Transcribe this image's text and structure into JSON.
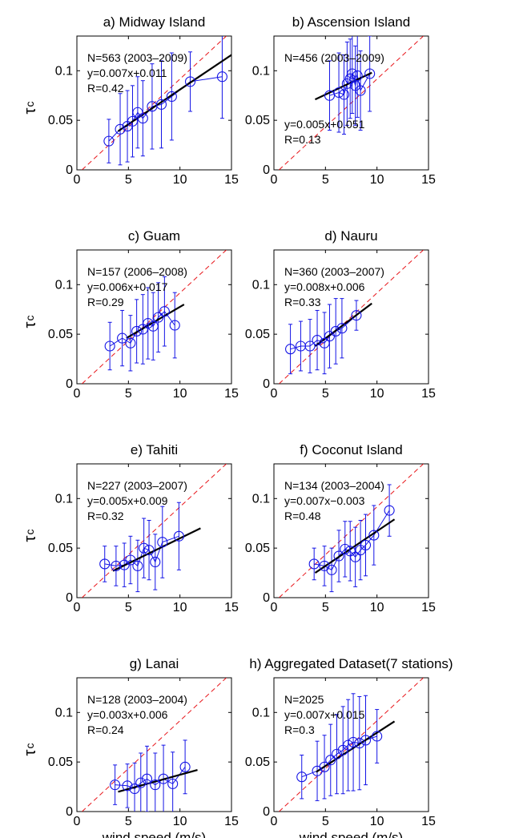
{
  "figure": {
    "ylabel_main": "τ",
    "ylabel_sub": "c",
    "xlabel": "wind speed (m/s)"
  },
  "chart_data": [
    {
      "type": "scatter",
      "title": "a) Midway Island",
      "stats": [
        "N=563 (2003–2009)",
        "y=0.007x+0.011",
        "R=0.42"
      ],
      "xlim": [
        0,
        15
      ],
      "ylim": [
        0,
        0.135
      ],
      "xticks": [
        0,
        5,
        10,
        15
      ],
      "yticks": [
        0,
        0.05,
        0.1
      ],
      "xtick_labels": [
        "0",
        "5",
        "10",
        "15"
      ],
      "ytick_labels": [
        "0",
        "0.05",
        "0.1"
      ],
      "x": [
        3.1,
        4.2,
        4.9,
        5.4,
        5.9,
        6.4,
        7.3,
        8.2,
        9.2,
        11.0,
        14.1
      ],
      "y": [
        0.029,
        0.041,
        0.044,
        0.049,
        0.058,
        0.052,
        0.064,
        0.066,
        0.074,
        0.089,
        0.094
      ],
      "err": [
        0.022,
        0.036,
        0.036,
        0.036,
        0.036,
        0.038,
        0.043,
        0.044,
        0.044,
        0.03,
        0.042
      ],
      "fit_line": {
        "x": [
          4,
          15
        ],
        "y": [
          0.039,
          0.116
        ]
      },
      "reference_line": {
        "x": [
          0.5,
          14.5
        ],
        "y": [
          0,
          0.135
        ]
      }
    },
    {
      "type": "scatter",
      "title": "b) Ascension Island",
      "stats": [
        "N=456 (2003–2009)",
        "y=0.005x+0.051",
        "R=0.13"
      ],
      "xlim": [
        0,
        15
      ],
      "ylim": [
        0,
        0.135
      ],
      "xticks": [
        0,
        5,
        10,
        15
      ],
      "yticks": [
        0,
        0.05,
        0.1
      ],
      "xtick_labels": [
        "0",
        "5",
        "10",
        "15"
      ],
      "ytick_labels": [
        "0",
        "0.05",
        "0.1"
      ],
      "x": [
        5.4,
        6.3,
        6.8,
        7.1,
        7.4,
        7.6,
        7.9,
        8.1,
        8.4,
        9.3
      ],
      "y": [
        0.075,
        0.078,
        0.076,
        0.087,
        0.092,
        0.097,
        0.085,
        0.095,
        0.08,
        0.097
      ],
      "err": [
        0.035,
        0.04,
        0.04,
        0.042,
        0.04,
        0.04,
        0.04,
        0.042,
        0.04,
        0.038
      ],
      "fit_line": {
        "x": [
          4,
          9.5
        ],
        "y": [
          0.071,
          0.098
        ]
      },
      "reference_line": {
        "x": [
          0.5,
          14.5
        ],
        "y": [
          0,
          0.135
        ]
      }
    },
    {
      "type": "scatter",
      "title": "c) Guam",
      "stats": [
        "N=157 (2006–2008)",
        "y=0.006x+0.017",
        "R=0.29"
      ],
      "xlim": [
        0,
        15
      ],
      "ylim": [
        0,
        0.135
      ],
      "xticks": [
        0,
        5,
        10,
        15
      ],
      "yticks": [
        0,
        0.05,
        0.1
      ],
      "xtick_labels": [
        "0",
        "5",
        "10",
        "15"
      ],
      "ytick_labels": [
        "0",
        "0.05",
        "0.1"
      ],
      "x": [
        3.2,
        4.4,
        5.2,
        5.8,
        6.4,
        6.9,
        7.4,
        7.9,
        8.5,
        9.5
      ],
      "y": [
        0.038,
        0.046,
        0.041,
        0.053,
        0.055,
        0.061,
        0.058,
        0.067,
        0.073,
        0.059
      ],
      "err": [
        0.024,
        0.028,
        0.028,
        0.032,
        0.035,
        0.036,
        0.034,
        0.035,
        0.035,
        0.033
      ],
      "fit_line": {
        "x": [
          4.8,
          10.4
        ],
        "y": [
          0.046,
          0.08
        ]
      },
      "reference_line": {
        "x": [
          0.5,
          14.5
        ],
        "y": [
          0,
          0.135
        ]
      }
    },
    {
      "type": "scatter",
      "title": "d) Nauru",
      "stats": [
        "N=360 (2003–2007)",
        "y=0.008x+0.006",
        "R=0.33"
      ],
      "xlim": [
        0,
        15
      ],
      "ylim": [
        0,
        0.135
      ],
      "xticks": [
        0,
        5,
        10,
        15
      ],
      "yticks": [
        0,
        0.05,
        0.1
      ],
      "xtick_labels": [
        "0",
        "5",
        "10",
        "15"
      ],
      "ytick_labels": [
        "0",
        "0.05",
        "0.1"
      ],
      "x": [
        1.6,
        2.6,
        3.5,
        4.2,
        4.9,
        5.4,
        6.0,
        6.6,
        8.0
      ],
      "y": [
        0.035,
        0.038,
        0.038,
        0.044,
        0.041,
        0.048,
        0.053,
        0.056,
        0.069
      ],
      "err": [
        0.025,
        0.025,
        0.027,
        0.03,
        0.031,
        0.032,
        0.033,
        0.03,
        0.015
      ],
      "fit_line": {
        "x": [
          4,
          9.5
        ],
        "y": [
          0.038,
          0.081
        ]
      },
      "reference_line": {
        "x": [
          0.5,
          14.5
        ],
        "y": [
          0,
          0.135
        ]
      }
    },
    {
      "type": "scatter",
      "title": "e) Tahiti",
      "stats": [
        "N=227 (2003–2007)",
        "y=0.005x+0.009",
        "R=0.32"
      ],
      "xlim": [
        0,
        15
      ],
      "ylim": [
        0,
        0.135
      ],
      "xticks": [
        0,
        5,
        10,
        15
      ],
      "yticks": [
        0,
        0.05,
        0.1
      ],
      "xtick_labels": [
        "0",
        "5",
        "10",
        "15"
      ],
      "ytick_labels": [
        "0",
        "0.05",
        "0.1"
      ],
      "x": [
        2.7,
        3.8,
        4.6,
        5.2,
        5.9,
        6.5,
        7.0,
        7.6,
        8.3,
        9.9
      ],
      "y": [
        0.034,
        0.032,
        0.033,
        0.038,
        0.032,
        0.05,
        0.048,
        0.036,
        0.056,
        0.062
      ],
      "err": [
        0.018,
        0.02,
        0.022,
        0.024,
        0.026,
        0.03,
        0.03,
        0.028,
        0.036,
        0.034
      ],
      "fit_line": {
        "x": [
          3.5,
          12
        ],
        "y": [
          0.027,
          0.07
        ]
      },
      "reference_line": {
        "x": [
          0.5,
          14.5
        ],
        "y": [
          0,
          0.135
        ]
      }
    },
    {
      "type": "scatter",
      "title": "f) Coconut Island",
      "stats": [
        "N=134 (2003–2004)",
        "y=0.007x−0.003",
        "R=0.48"
      ],
      "xlim": [
        0,
        15
      ],
      "ylim": [
        0,
        0.135
      ],
      "xticks": [
        0,
        5,
        10,
        15
      ],
      "yticks": [
        0,
        0.05,
        0.1
      ],
      "xtick_labels": [
        "0",
        "5",
        "10",
        "15"
      ],
      "ytick_labels": [
        "0",
        "0.05",
        "0.1"
      ],
      "x": [
        3.9,
        4.9,
        5.6,
        6.3,
        6.9,
        7.4,
        7.9,
        8.4,
        8.9,
        9.7,
        11.2
      ],
      "y": [
        0.034,
        0.032,
        0.028,
        0.042,
        0.049,
        0.047,
        0.041,
        0.048,
        0.053,
        0.063,
        0.088
      ],
      "err": [
        0.016,
        0.02,
        0.022,
        0.026,
        0.028,
        0.03,
        0.03,
        0.03,
        0.031,
        0.03,
        0.026
      ],
      "fit_line": {
        "x": [
          4,
          11.7
        ],
        "y": [
          0.025,
          0.079
        ]
      },
      "reference_line": {
        "x": [
          0.5,
          14.5
        ],
        "y": [
          0,
          0.135
        ]
      }
    },
    {
      "type": "scatter",
      "title": "g) Lanai",
      "stats": [
        "N=128 (2003–2004)",
        "y=0.003x+0.006",
        "R=0.24"
      ],
      "xlim": [
        0,
        15
      ],
      "ylim": [
        0,
        0.135
      ],
      "xticks": [
        0,
        5,
        10,
        15
      ],
      "yticks": [
        0,
        0.05,
        0.1
      ],
      "xtick_labels": [
        "0",
        "5",
        "10",
        "15"
      ],
      "ytick_labels": [
        "0",
        "0.05",
        "0.1"
      ],
      "x": [
        3.7,
        4.9,
        5.6,
        6.2,
        6.8,
        7.6,
        8.4,
        9.3,
        10.5
      ],
      "y": [
        0.027,
        0.026,
        0.023,
        0.029,
        0.033,
        0.027,
        0.033,
        0.028,
        0.045
      ],
      "err": [
        0.02,
        0.022,
        0.026,
        0.03,
        0.033,
        0.032,
        0.034,
        0.032,
        0.027
      ],
      "fit_line": {
        "x": [
          4,
          11.7
        ],
        "y": [
          0.02,
          0.042
        ]
      },
      "reference_line": {
        "x": [
          0.5,
          14.5
        ],
        "y": [
          0,
          0.135
        ]
      }
    },
    {
      "type": "scatter",
      "title": "h) Aggregated Dataset(7 stations)",
      "stats": [
        "N=2025",
        "y=0.007x+0.015",
        "R=0.3"
      ],
      "xlim": [
        0,
        15
      ],
      "ylim": [
        0,
        0.135
      ],
      "xticks": [
        0,
        5,
        10,
        15
      ],
      "yticks": [
        0,
        0.05,
        0.1
      ],
      "xtick_labels": [
        "0",
        "5",
        "10",
        "15"
      ],
      "ytick_labels": [
        "0",
        "0.05",
        "0.1"
      ],
      "x": [
        2.7,
        4.2,
        4.9,
        5.5,
        6.1,
        6.7,
        7.2,
        7.7,
        8.3,
        8.9,
        10.0
      ],
      "y": [
        0.035,
        0.041,
        0.045,
        0.052,
        0.058,
        0.062,
        0.067,
        0.07,
        0.069,
        0.072,
        0.076
      ],
      "err": [
        0.022,
        0.03,
        0.032,
        0.036,
        0.04,
        0.044,
        0.046,
        0.049,
        0.047,
        0.045,
        0.027
      ],
      "fit_line": {
        "x": [
          4.1,
          11.7
        ],
        "y": [
          0.04,
          0.091
        ]
      },
      "reference_line": {
        "x": [
          0.5,
          14.5
        ],
        "y": [
          0,
          0.135
        ]
      }
    }
  ]
}
